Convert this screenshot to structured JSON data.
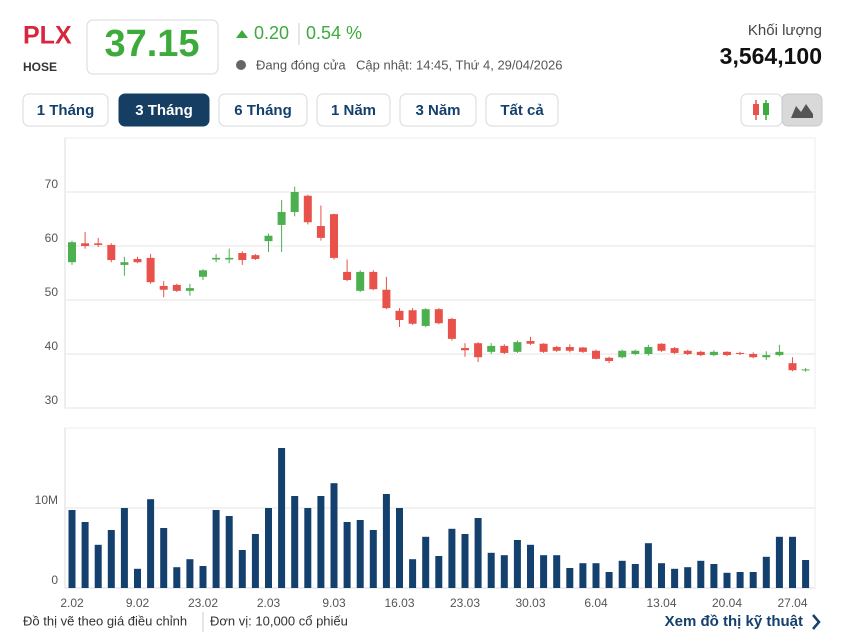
{
  "header": {
    "symbol": "PLX",
    "exchange": "HOSE",
    "price": "37.15",
    "change": "0.20",
    "change_pct": "0.54 %",
    "status": "Đang đóng cửa",
    "updated": "Cập nhật: 14:45, Thứ 4, 29/04/2026",
    "volume_label": "Khối lượng",
    "volume": "3,564,100"
  },
  "tabs": {
    "items": [
      "1 Tháng",
      "3 Tháng",
      "6 Tháng",
      "1 Năm",
      "3 Năm",
      "Tất cả"
    ],
    "active": 1
  },
  "chart_data": [
    {
      "type": "candlestick",
      "up_color": "#4caf50",
      "down_color": "#e8524a",
      "grid": true,
      "ylim": [
        30,
        80
      ],
      "yticks": [
        30,
        40,
        50,
        60,
        70
      ],
      "open": [
        57,
        60.5,
        60.5,
        60.2,
        56.5,
        57.6,
        57.8,
        52.6,
        52.8,
        51.7,
        54.3,
        57.5,
        57.5,
        58.7,
        58.3,
        60.9,
        63.9,
        66.3,
        69.3,
        63.7,
        65.9,
        55.2,
        51.7,
        55.2,
        51.9,
        48,
        48.1,
        45.2,
        48.3,
        46.5,
        41.1,
        42,
        40.4,
        41.5,
        40.4,
        42.4,
        41.9,
        41.3,
        41.3,
        41.2,
        40.6,
        39.3,
        39.4,
        40,
        40,
        41.9,
        41.1,
        40.6,
        40.4,
        39.8,
        40.4,
        40.2,
        40,
        39.4,
        39.8,
        38.3,
        37
      ],
      "high": [
        61,
        62.6,
        61.5,
        60.5,
        58,
        58,
        58.5,
        53.5,
        53,
        53,
        55.7,
        58.5,
        59.5,
        59,
        58.5,
        62.3,
        68.5,
        71,
        69.5,
        67.5,
        66,
        57.5,
        55.5,
        55.5,
        54.3,
        48.5,
        48.5,
        48.5,
        48.5,
        46.7,
        42,
        42.2,
        42,
        41.8,
        42.5,
        43.2,
        42,
        41.5,
        41.8,
        41.3,
        40.8,
        39.5,
        40.8,
        40.8,
        41.7,
        42,
        41.3,
        40.8,
        40.6,
        40.7,
        40.5,
        40.4,
        40.3,
        40.5,
        41.7,
        39.4,
        37.4
      ],
      "low": [
        56.5,
        59.5,
        59.8,
        57,
        54.5,
        56.8,
        53,
        50.5,
        51.5,
        50.8,
        53.7,
        57,
        56.8,
        56.5,
        57.4,
        58.9,
        58.9,
        65.5,
        64,
        61,
        57.5,
        53.5,
        51.5,
        51.8,
        48.3,
        45,
        45.4,
        45,
        45.5,
        42.5,
        39.5,
        38.5,
        40,
        40,
        40.2,
        41.7,
        40.2,
        40.4,
        40.3,
        40.2,
        39,
        38.3,
        39.2,
        39.8,
        39.7,
        40.4,
        40,
        39.8,
        39.6,
        39.6,
        39.6,
        39.8,
        39.2,
        38.9,
        39.6,
        36.8,
        36.7
      ],
      "close": [
        60.7,
        60,
        60.2,
        57.4,
        57,
        57,
        53.3,
        51.9,
        51.7,
        52.2,
        55.5,
        57.8,
        57.8,
        57.4,
        57.6,
        61.9,
        66.3,
        70,
        64.4,
        61.5,
        57.8,
        53.7,
        55.2,
        52,
        48.5,
        46.3,
        45.6,
        48.3,
        45.7,
        42.8,
        40.7,
        39.4,
        41.5,
        40.2,
        42.2,
        41.9,
        40.4,
        40.6,
        40.6,
        40.4,
        39.1,
        38.7,
        40.6,
        40.6,
        41.3,
        40.6,
        40.2,
        40,
        39.8,
        40.4,
        39.8,
        40,
        39.4,
        39.8,
        40.4,
        37,
        37.15
      ]
    },
    {
      "type": "bar",
      "color": "#14406d",
      "grid": true,
      "ylim": [
        0,
        20000000
      ],
      "yticks": [
        0,
        {
          "value": 10000000,
          "label": "10M"
        }
      ],
      "categories": [
        "2.02",
        null,
        null,
        null,
        null,
        "9.02",
        null,
        null,
        null,
        null,
        "23.02",
        null,
        null,
        null,
        null,
        "2.03",
        null,
        null,
        null,
        null,
        "9.03",
        null,
        null,
        null,
        null,
        "16.03",
        null,
        null,
        null,
        null,
        "23.03",
        null,
        null,
        null,
        null,
        "30.03",
        null,
        null,
        null,
        null,
        "6.04",
        null,
        null,
        null,
        null,
        "13.04",
        null,
        null,
        null,
        null,
        "20.04",
        null,
        null,
        null,
        null,
        "27.04",
        null
      ],
      "values": [
        9750000,
        8250000,
        5400000,
        7250000,
        10000000,
        2400000,
        11100000,
        7500000,
        2600000,
        3600000,
        2750000,
        9750000,
        9000000,
        4750000,
        6750000,
        10000000,
        17500000,
        11500000,
        10000000,
        11500000,
        13100000,
        8250000,
        8500000,
        7250000,
        11750000,
        10000000,
        3600000,
        6400000,
        4000000,
        7400000,
        6750000,
        8750000,
        4400000,
        4100000,
        6000000,
        5400000,
        4100000,
        4100000,
        2500000,
        3100000,
        3100000,
        2000000,
        3400000,
        3000000,
        5600000,
        3100000,
        2400000,
        2600000,
        3400000,
        3000000,
        1900000,
        2000000,
        2000000,
        3900000,
        6400000,
        6400000,
        3500000
      ]
    }
  ],
  "footer": {
    "note": "Đồ thị vẽ theo giá điều chỉnh",
    "unit": "Đơn vị: 10,000 cổ phiếu",
    "link": "Xem đồ thị kỹ thuật"
  }
}
